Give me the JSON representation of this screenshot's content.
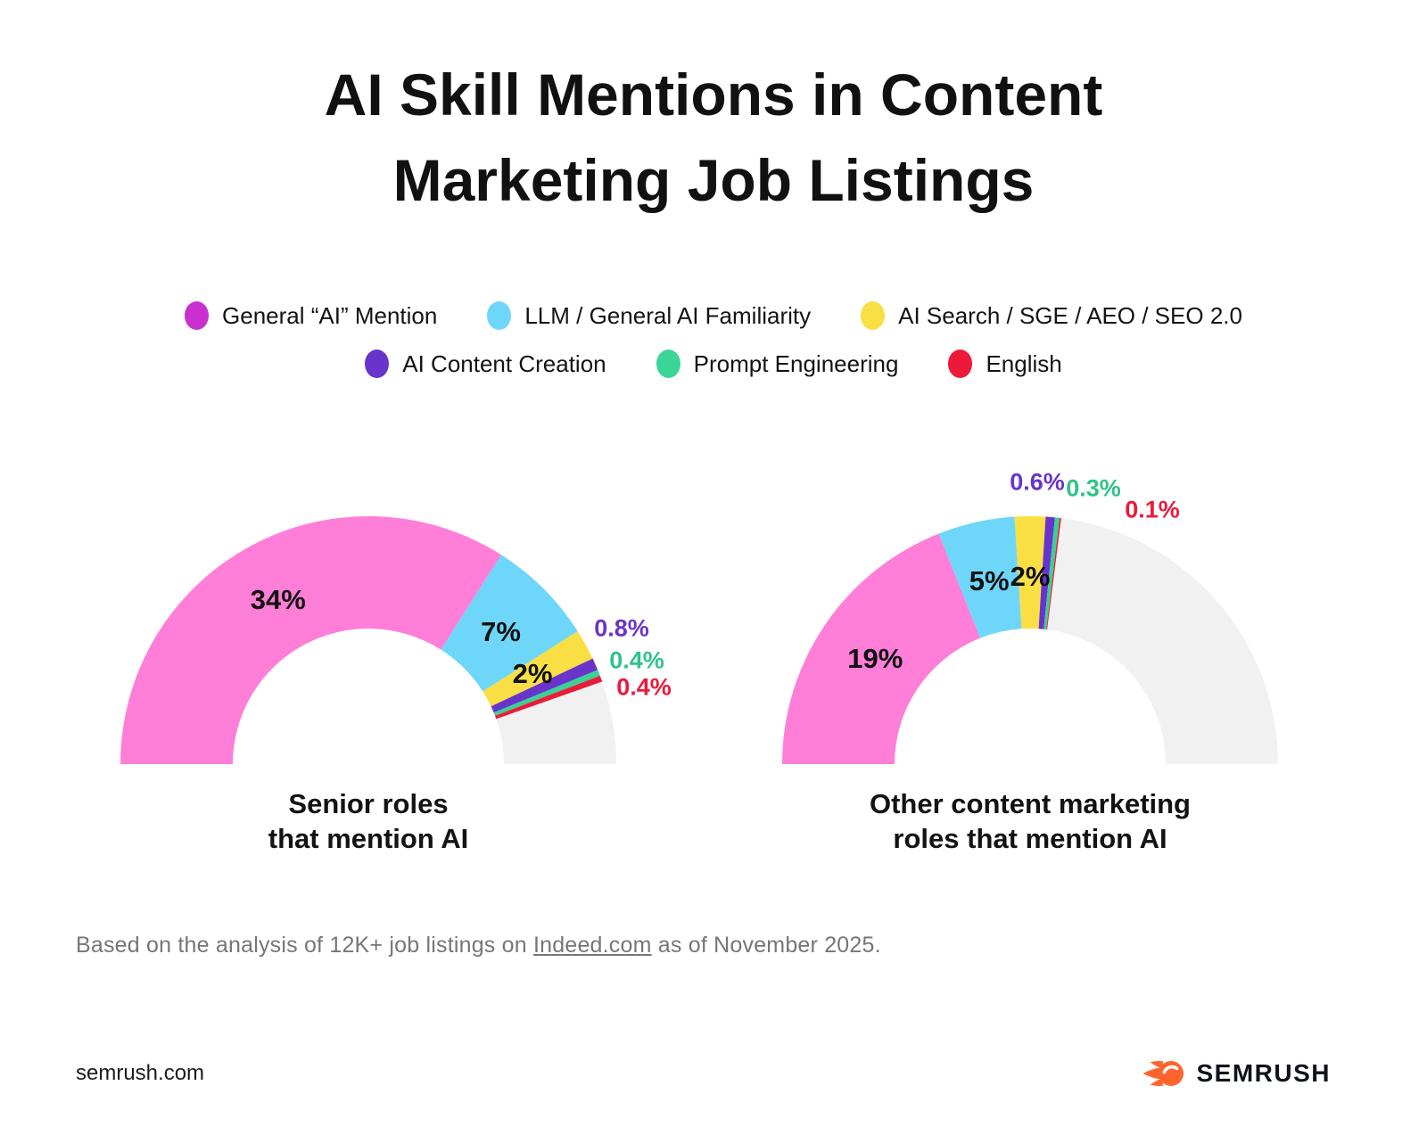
{
  "title": {
    "line1": "AI Skill Mentions in Content",
    "line2": "Marketing Job Listings"
  },
  "legend": {
    "items": [
      {
        "label": "General “AI” Mention",
        "color": "#C930CF"
      },
      {
        "label": "LLM / General AI Familiarity",
        "color": "#6ED7F9"
      },
      {
        "label": "AI Search / SGE / AEO / SEO 2.0",
        "color": "#F9DF42"
      },
      {
        "label": "AI Content Creation",
        "color": "#6934CB"
      },
      {
        "label": "Prompt Engineering",
        "color": "#3BD598"
      },
      {
        "label": "English",
        "color": "#EC1A38"
      }
    ]
  },
  "chart_data": [
    {
      "type": "pie",
      "subtype": "semicircle-donut",
      "title": "Senior roles that mention AI",
      "caption_lines": [
        "Senior roles",
        "that mention AI"
      ],
      "unit": "%",
      "angle_per_percent_deg": 3.6,
      "remainder_color": "#F1F1F1",
      "series": [
        {
          "name": "General “AI” Mention",
          "value": 34,
          "label": "34%",
          "color": "#FF7ED7",
          "label_color": "#111111"
        },
        {
          "name": "LLM / General AI Familiarity",
          "value": 7,
          "label": "7%",
          "color": "#6ED7F9",
          "label_color": "#111111"
        },
        {
          "name": "AI Search / SGE / AEO / SEO 2.0",
          "value": 2,
          "label": "2%",
          "color": "#FADF44",
          "label_color": "#111111"
        },
        {
          "name": "AI Content Creation",
          "value": 0.8,
          "label": "0.8%",
          "color": "#6934CB",
          "label_color": "#6934CB"
        },
        {
          "name": "Prompt Engineering",
          "value": 0.4,
          "label": "0.4%",
          "color": "#37D295",
          "label_color": "#2EC389"
        },
        {
          "name": "English",
          "value": 0.4,
          "label": "0.4%",
          "color": "#EC1A38",
          "label_color": "#EC1A38"
        }
      ]
    },
    {
      "type": "pie",
      "subtype": "semicircle-donut",
      "title": "Other content marketing roles that mention AI",
      "caption_lines": [
        "Other content marketing",
        "roles that mention AI"
      ],
      "unit": "%",
      "angle_per_percent_deg": 3.6,
      "remainder_color": "#F1F1F1",
      "series": [
        {
          "name": "General “AI” Mention",
          "value": 19,
          "label": "19%",
          "color": "#FF7ED7",
          "label_color": "#111111"
        },
        {
          "name": "LLM / General AI Familiarity",
          "value": 5,
          "label": "5%",
          "color": "#6ED7F9",
          "label_color": "#111111"
        },
        {
          "name": "AI Search / SGE / AEO / SEO 2.0",
          "value": 2,
          "label": "2%",
          "color": "#FADF44",
          "label_color": "#111111"
        },
        {
          "name": "AI Content Creation",
          "value": 0.6,
          "label": "0.6%",
          "color": "#6934CB",
          "label_color": "#6934CB"
        },
        {
          "name": "Prompt Engineering",
          "value": 0.3,
          "label": "0.3%",
          "color": "#37D295",
          "label_color": "#2EC389"
        },
        {
          "name": "English",
          "value": 0.1,
          "label": "0.1%",
          "color": "#EC1A38",
          "label_color": "#EC1A38"
        }
      ]
    }
  ],
  "footnote": {
    "prefix": "Based on the analysis of 12K+ job listings on ",
    "link": "Indeed.com",
    "suffix": " as of November 2025."
  },
  "footer": {
    "site": "semrush.com",
    "brand": "SEMRUSH"
  }
}
